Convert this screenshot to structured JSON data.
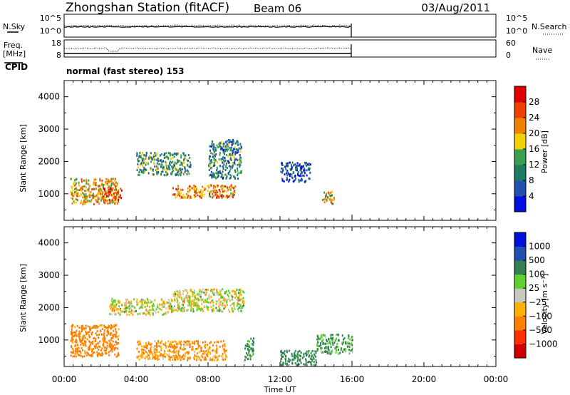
{
  "header": {
    "station": "Zhongshan Station (fitACF)",
    "beam": "Beam 06",
    "date": "03/Aug/2011"
  },
  "nsky_panel": {
    "left_label": "N.Sky",
    "left_ticks": [
      "10^5",
      "10^0"
    ],
    "right_ticks": [
      "10^5",
      "10^0"
    ],
    "right_label": "N.Search"
  },
  "freq_panel": {
    "left_label_1": "Freq.",
    "left_label_2": "[MHz]",
    "left_ticks": [
      "18",
      "8"
    ],
    "right_ticks": [
      "60",
      "0"
    ],
    "right_label": "Nave"
  },
  "cpid_panel": {
    "label": "CPID",
    "text": "normal (fast stereo) 153"
  },
  "axes": {
    "ylabel": "Slant Range [km]",
    "y_ticks": [
      "4000",
      "3000",
      "2000",
      "1000"
    ],
    "x_ticks": [
      "00:00",
      "04:00",
      "08:00",
      "12:00",
      "16:00",
      "20:00",
      "00:00"
    ],
    "xlabel": "Time UT"
  },
  "colors": {
    "power_scale": [
      "#0010e0",
      "#2050b0",
      "#1e7a60",
      "#3aa050",
      "#f0d000",
      "#f08000",
      "#f04000",
      "#e00000"
    ],
    "velocity_scale": [
      "#d00000",
      "#ff3000",
      "#ff8000",
      "#ffb000",
      "#c8c8c0",
      "#60d030",
      "#308050",
      "#2050b0",
      "#0010e0"
    ]
  },
  "chart_data": [
    {
      "type": "heatmap",
      "name": "power",
      "title": "",
      "xlabel": "",
      "ylabel": "Slant Range [km]",
      "xlim": [
        "00:00",
        "00:00"
      ],
      "ylim": [
        180,
        4500
      ],
      "colorbar_label": "Power [dB]",
      "colorbar_ticks": [
        "28",
        "24",
        "20",
        "16",
        "12",
        "8",
        "4"
      ],
      "data_end_time": "16:00",
      "echo_regions": [
        {
          "t0": "00:20",
          "t1": "03:00",
          "r0": 700,
          "r1": 1500,
          "level": 20
        },
        {
          "t0": "02:00",
          "t1": "03:10",
          "r0": 800,
          "r1": 1200,
          "level": 26
        },
        {
          "t0": "04:00",
          "t1": "07:00",
          "r0": 1600,
          "r1": 2300,
          "level": 12
        },
        {
          "t0": "06:00",
          "t1": "09:30",
          "r0": 900,
          "r1": 1300,
          "level": 22
        },
        {
          "t0": "08:00",
          "t1": "09:50",
          "r0": 1500,
          "r1": 2700,
          "level": 10
        },
        {
          "t0": "12:00",
          "t1": "13:40",
          "r0": 1400,
          "r1": 2000,
          "level": 6
        },
        {
          "t0": "14:20",
          "t1": "15:00",
          "r0": 700,
          "r1": 1100,
          "level": 18
        }
      ]
    },
    {
      "type": "heatmap",
      "name": "velocity",
      "title": "",
      "xlabel": "Time UT",
      "ylabel": "Slant Range [km]",
      "xlim": [
        "00:00",
        "00:00"
      ],
      "ylim": [
        180,
        4500
      ],
      "colorbar_label": "Velocity [m s⁻¹]",
      "colorbar_ticks": [
        "1000",
        "500",
        "100",
        "25",
        "−25",
        "−100",
        "−500",
        "−1000"
      ],
      "data_end_time": "16:00",
      "echo_regions": [
        {
          "t0": "00:20",
          "t1": "03:00",
          "r0": 500,
          "r1": 1500,
          "level": -200
        },
        {
          "t0": "02:30",
          "t1": "06:00",
          "r0": 1800,
          "r1": 2300,
          "level": 0
        },
        {
          "t0": "06:00",
          "t1": "10:00",
          "r0": 1900,
          "r1": 2600,
          "level": 5
        },
        {
          "t0": "04:00",
          "t1": "09:00",
          "r0": 400,
          "r1": 1000,
          "level": -120
        },
        {
          "t0": "10:00",
          "t1": "10:30",
          "r0": 400,
          "r1": 1100,
          "level": 150
        },
        {
          "t0": "12:00",
          "t1": "14:00",
          "r0": 250,
          "r1": 700,
          "level": 200
        },
        {
          "t0": "14:00",
          "t1": "16:00",
          "r0": 600,
          "r1": 1200,
          "level": 120
        }
      ]
    }
  ]
}
